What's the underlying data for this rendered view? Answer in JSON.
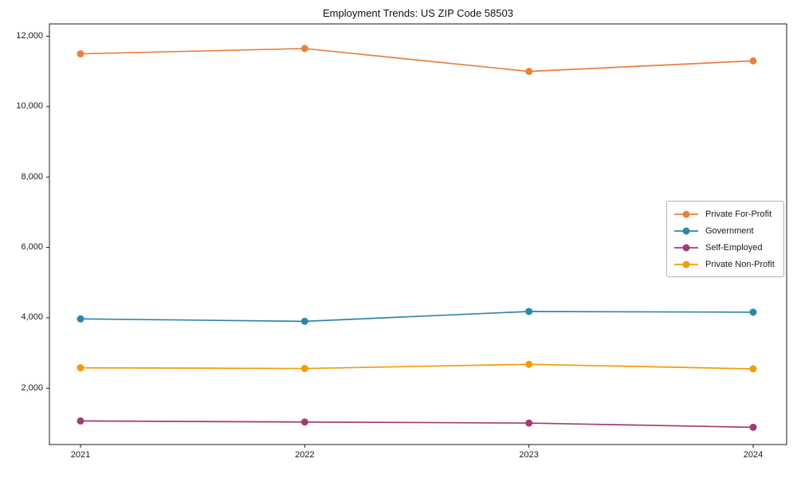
{
  "chart_data": {
    "type": "line",
    "title": "Employment Trends: US ZIP Code 58503",
    "categories": [
      "2021",
      "2022",
      "2023",
      "2024"
    ],
    "series": [
      {
        "name": "Private For-Profit",
        "color": "#E8813C",
        "values": [
          11500,
          11650,
          11000,
          11300
        ]
      },
      {
        "name": "Government",
        "color": "#2E86AB",
        "values": [
          3970,
          3900,
          4180,
          4160
        ]
      },
      {
        "name": "Self-Employed",
        "color": "#A23B72",
        "values": [
          1070,
          1040,
          1010,
          890
        ]
      },
      {
        "name": "Private Non-Profit",
        "color": "#F29C05",
        "values": [
          2580,
          2560,
          2680,
          2550
        ]
      }
    ],
    "xlabel": "",
    "ylabel": "",
    "ylim": [
      400,
      12350
    ],
    "yticks": [
      2000,
      4000,
      6000,
      8000,
      10000,
      12000
    ],
    "ytick_labels": [
      "2,000",
      "4,000",
      "6,000",
      "8,000",
      "10,000",
      "12,000"
    ],
    "grid": false,
    "legend_position": "center-right",
    "axis_color": "#1a1a1a"
  }
}
